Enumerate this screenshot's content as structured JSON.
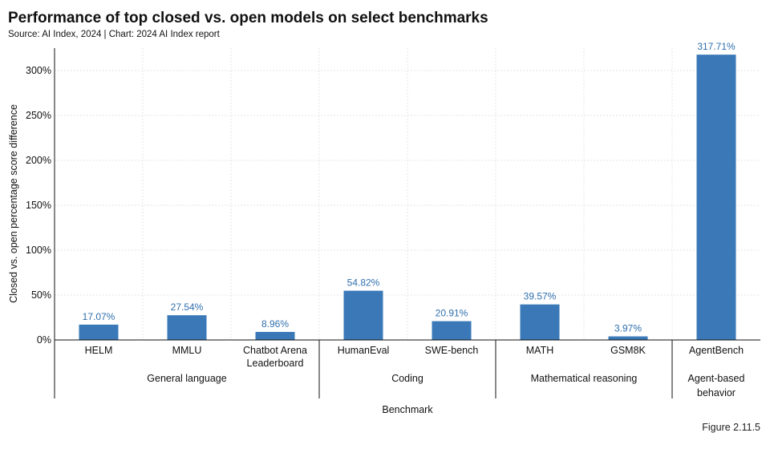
{
  "header": {
    "title": "Performance of top closed vs. open models on select benchmarks",
    "source": "Source: AI Index, 2024 | Chart: 2024 AI Index report"
  },
  "footer": {
    "figure_label": "Figure 2.11.5"
  },
  "colors": {
    "bar": "#3a78b8",
    "bar_label": "#2f6fad",
    "axis": "#111111",
    "grid": "#e6e6e6"
  },
  "chart_data": {
    "type": "bar",
    "ylabel": "Closed vs. open percentage score difference",
    "xlabel": "Benchmark",
    "ylim": [
      0,
      325
    ],
    "yticks": [
      0,
      50,
      100,
      150,
      200,
      250,
      300
    ],
    "ytick_labels": [
      "0%",
      "50%",
      "100%",
      "150%",
      "200%",
      "250%",
      "300%"
    ],
    "grid": true,
    "categories": [
      "HELM",
      "MMLU",
      "Chatbot Arena Leaderboard",
      "HumanEval",
      "SWE-bench",
      "MATH",
      "GSM8K",
      "AgentBench"
    ],
    "category_lines": [
      [
        "HELM"
      ],
      [
        "MMLU"
      ],
      [
        "Chatbot Arena",
        "Leaderboard"
      ],
      [
        "HumanEval"
      ],
      [
        "SWE-bench"
      ],
      [
        "MATH"
      ],
      [
        "GSM8K"
      ],
      [
        "AgentBench"
      ]
    ],
    "values": [
      17.07,
      27.54,
      8.96,
      54.82,
      20.91,
      39.57,
      3.97,
      317.71
    ],
    "value_labels": [
      "17.07%",
      "27.54%",
      "8.96%",
      "54.82%",
      "20.91%",
      "39.57%",
      "3.97%",
      "317.71%"
    ],
    "groups": [
      {
        "label_lines": [
          "General language"
        ],
        "count": 3
      },
      {
        "label_lines": [
          "Coding"
        ],
        "count": 2
      },
      {
        "label_lines": [
          "Mathematical reasoning"
        ],
        "count": 2
      },
      {
        "label_lines": [
          "Agent-based",
          "behavior"
        ],
        "count": 1
      }
    ]
  }
}
